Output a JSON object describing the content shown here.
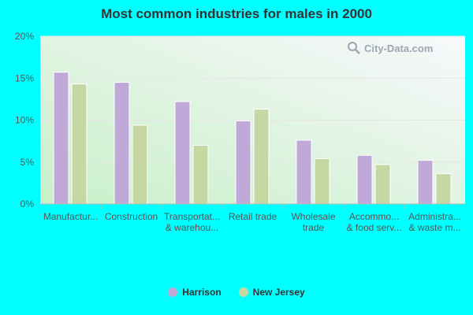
{
  "watermark": {
    "text": "City-Data.com"
  },
  "colors": {
    "harrison": "#c0a8d8",
    "new_jersey": "#c5d8a4"
  },
  "chart_data": {
    "type": "bar",
    "title": "Most common industries for males in 2000",
    "categories": [
      [
        "Manufactur..."
      ],
      [
        "Construction"
      ],
      [
        "Transportat...",
        "& warehou..."
      ],
      [
        "Retail trade"
      ],
      [
        "Wholesale",
        "trade"
      ],
      [
        "Accommo...",
        "& food serv..."
      ],
      [
        "Administra...",
        "& waste m..."
      ]
    ],
    "series": [
      {
        "name": "Harrison",
        "values": [
          15.7,
          14.5,
          12.2,
          9.9,
          7.6,
          5.8,
          5.2
        ]
      },
      {
        "name": "New Jersey",
        "values": [
          14.3,
          9.4,
          7.0,
          11.3,
          5.4,
          4.7,
          3.6
        ]
      }
    ],
    "yticks": [
      "0%",
      "5%",
      "10%",
      "15%",
      "20%"
    ],
    "ylim": [
      0,
      20
    ],
    "legend_position": "bottom-center",
    "grid": true
  }
}
